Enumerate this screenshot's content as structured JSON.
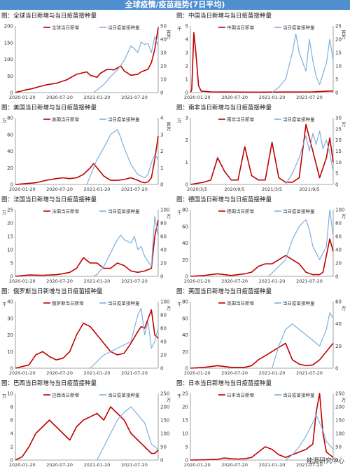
{
  "page": {
    "title": "全球疫情/疫苗趋势(7日平均)",
    "watermark": "能源研究中心"
  },
  "colors": {
    "cases": "#c00000",
    "vaccine": "#7fb0dc",
    "banner": "#4f8fd0"
  },
  "chart_data": [
    {
      "type": "line",
      "title": "图：全球当日新增与当日疫苗接种量",
      "series": [
        {
          "name": "全球当日新增",
          "axis": "left",
          "x": [
            0,
            0.3,
            1,
            1.5,
            2.5,
            3.5,
            4.5,
            6,
            7.5,
            9,
            10.5,
            11,
            12,
            12.5,
            13.5,
            14.5,
            15.5,
            16,
            17,
            18,
            18.5,
            19.5,
            20,
            20.5,
            21
          ],
          "y": [
            0,
            2,
            5,
            8,
            12,
            18,
            23,
            28,
            38,
            55,
            62,
            52,
            46,
            58,
            70,
            68,
            80,
            65,
            52,
            55,
            62,
            70,
            90,
            130,
            195
          ]
        },
        {
          "name": "当日疫苗接种量",
          "axis": "right",
          "x": [
            11.5,
            12,
            13,
            14,
            15,
            16,
            17,
            17.5,
            18,
            18.5,
            19,
            19.5,
            20,
            20.5,
            21
          ],
          "y": [
            0,
            2,
            6,
            12,
            17,
            24,
            35,
            33,
            30,
            38,
            36,
            37,
            30,
            42,
            35
          ]
        }
      ],
      "x_ticks": [
        "2020-01-20",
        "2020-07-20",
        "2021-01-20",
        "2021-07-20"
      ],
      "ylim": [
        0,
        200
      ],
      "y_ticks": [
        0,
        50,
        100,
        150,
        200
      ],
      "y2lim": [
        0,
        50
      ],
      "y2_ticks": [
        0,
        10,
        20,
        30,
        40,
        50
      ],
      "y2_unit": "百万"
    },
    {
      "type": "line",
      "title": "图：中国当日新增与当日疫苗接种量",
      "series": [
        {
          "name": "中国当日新增",
          "axis": "left",
          "x": [
            0,
            0.2,
            0.5,
            0.8,
            1.2,
            1.6,
            2,
            3,
            10,
            18,
            20,
            21
          ],
          "y": [
            0,
            0.2,
            4.5,
            3,
            0.5,
            0.1,
            0.1,
            0.05,
            0.03,
            0.05,
            0.1,
            0.12
          ]
        },
        {
          "name": "当日疫苗接种量",
          "axis": "right",
          "x": [
            12,
            13,
            14,
            15,
            15.5,
            16,
            17,
            17.5,
            18,
            18.5,
            19,
            20,
            20.5,
            21
          ],
          "y": [
            0,
            2,
            5,
            15,
            22,
            15,
            8,
            20,
            12,
            6,
            3,
            11,
            20,
            12
          ]
        }
      ],
      "x_ticks": [
        "2020-01-20",
        "2020-07-20",
        "2021-01-20",
        "2021-07-20"
      ],
      "ylim": [
        0,
        5
      ],
      "y_ticks": [
        0,
        1,
        2,
        3,
        4,
        5
      ],
      "y_unit": "千",
      "y2lim": [
        0,
        25
      ],
      "y2_ticks": [
        0,
        5,
        10,
        15,
        20,
        25
      ],
      "y2_unit": "百万"
    },
    {
      "type": "line",
      "title": "图：美国当日新增与当日疫苗接种量",
      "series": [
        {
          "name": "美国当日新增",
          "axis": "left",
          "x": [
            0,
            1.5,
            3,
            4.5,
            6,
            7,
            8,
            9,
            10,
            11,
            11.5,
            12,
            13,
            14,
            15,
            16,
            17,
            18,
            18.5,
            19,
            19.5,
            20,
            20.5,
            21
          ],
          "y": [
            0,
            1,
            2,
            5,
            7,
            8,
            7,
            8,
            12,
            20,
            25,
            20,
            10,
            5,
            5,
            6,
            8,
            5,
            3,
            2,
            3,
            8,
            30,
            58
          ]
        },
        {
          "name": "当日疫苗接种量",
          "axis": "right",
          "x": [
            10.5,
            11,
            12,
            13,
            14,
            15,
            15.5,
            16,
            17,
            18,
            19,
            19.5,
            20,
            20.5,
            21
          ],
          "y": [
            0,
            0.5,
            1.5,
            2.2,
            3,
            3.3,
            2.8,
            2.2,
            1.2,
            0.6,
            0.4,
            0.6,
            1.3,
            1.8,
            1.5
          ]
        }
      ],
      "x_ticks": [
        "2020-01-20",
        "2020-07-20",
        "2021-01-20",
        "2021-07-20"
      ],
      "ylim": [
        0,
        80
      ],
      "y_ticks": [
        0,
        20,
        40,
        60,
        80
      ],
      "y_unit": "万",
      "y2lim": [
        0,
        4
      ],
      "y2_ticks": [
        0,
        1,
        2,
        3,
        4
      ],
      "y2_unit": "百万"
    },
    {
      "type": "line",
      "title": "图：南非当日新增与当日疫苗接种量",
      "series": [
        {
          "name": "南非当日新增",
          "axis": "left",
          "x": [
            0,
            2,
            3,
            4,
            5,
            6,
            7,
            8,
            9,
            10,
            11,
            12,
            13,
            14,
            15,
            16,
            17,
            18,
            19,
            20,
            20.5,
            21
          ],
          "y": [
            0,
            0.1,
            0.2,
            1.2,
            0.6,
            0.2,
            0.2,
            1.7,
            0.4,
            0.2,
            0.2,
            1.9,
            0.3,
            0.1,
            0.1,
            0.3,
            2.7,
            1.5,
            0.3,
            1.2,
            2.1,
            1.0
          ]
        },
        {
          "name": "当日疫苗接种量",
          "axis": "right",
          "x": [
            14,
            15,
            16,
            17,
            17.5,
            18,
            18.5,
            19,
            19.5,
            20,
            20.5,
            21
          ],
          "y": [
            0,
            5,
            12,
            22,
            15,
            23,
            18,
            24,
            16,
            20,
            14,
            6
          ]
        }
      ],
      "x_ticks": [
        "2020/3/5",
        "2020/9/5",
        "2021/3/5",
        "2021/9/5"
      ],
      "ylim": [
        0,
        3
      ],
      "y_ticks": [
        0,
        1,
        2,
        3
      ],
      "y_unit": "万",
      "y2lim": [
        0,
        30
      ],
      "y2_ticks": [
        0,
        5,
        10,
        15,
        20,
        25,
        30
      ],
      "y2_unit": "万"
    },
    {
      "type": "line",
      "title": "图：法国当日新增与当日疫苗接种量",
      "series": [
        {
          "name": "法国当日新增",
          "axis": "left",
          "x": [
            0,
            2,
            4,
            6,
            7,
            8,
            9,
            10,
            11,
            12,
            13,
            14,
            15,
            16,
            17,
            18,
            19,
            20,
            20.5,
            21
          ],
          "y": [
            0,
            0.5,
            0.4,
            0.6,
            1,
            1.5,
            3,
            7,
            5,
            5,
            3,
            3,
            5,
            4,
            2,
            1.5,
            2,
            3,
            15,
            21
          ]
        },
        {
          "name": "当日疫苗接种量",
          "axis": "right",
          "x": [
            11.5,
            12,
            13,
            14,
            15,
            15.5,
            16,
            17,
            17.5,
            18,
            18.5,
            19,
            20,
            20.5,
            21
          ],
          "y": [
            0,
            3,
            15,
            35,
            55,
            62,
            55,
            50,
            60,
            40,
            45,
            30,
            15,
            90,
            60
          ]
        }
      ],
      "x_ticks": [
        "2020-01-20",
        "2020-07-20",
        "2021-01-20",
        "2021-07-20"
      ],
      "ylim": [
        0,
        25
      ],
      "y_ticks": [
        0,
        5,
        10,
        15,
        20,
        25
      ],
      "y_unit": "万",
      "y2lim": [
        0,
        100
      ],
      "y2_ticks": [
        0,
        20,
        40,
        60,
        80,
        100
      ],
      "y2_unit": "万"
    },
    {
      "type": "line",
      "title": "图：德国当日新增与当日疫苗接种量",
      "series": [
        {
          "name": "德国当日新增",
          "axis": "left",
          "x": [
            0,
            2,
            3,
            4,
            5,
            6,
            7,
            8,
            9,
            10,
            11,
            12,
            13,
            14,
            15,
            16,
            17,
            18,
            19,
            19.5,
            20,
            20.5,
            21
          ],
          "y": [
            0,
            1,
            2,
            3,
            2,
            1,
            2,
            3,
            5,
            12,
            15,
            15,
            20,
            25,
            20,
            15,
            5,
            2,
            2,
            5,
            25,
            45,
            30
          ]
        },
        {
          "name": "当日疫苗接种量",
          "axis": "right",
          "x": [
            11.5,
            12,
            13,
            14,
            15,
            16,
            17,
            17.5,
            18,
            19,
            20,
            20.5,
            21
          ],
          "y": [
            0,
            5,
            15,
            25,
            55,
            75,
            85,
            70,
            45,
            25,
            45,
            100,
            60
          ]
        }
      ],
      "x_ticks": [
        "2020-01-20",
        "2020-07-20",
        "2021-01-20",
        "2021-07-20"
      ],
      "ylim": [
        0,
        80
      ],
      "y_ticks": [
        0,
        20,
        40,
        60,
        80
      ],
      "y_unit": "千",
      "y2_ticks": [
        0,
        20,
        40,
        60,
        80,
        100
      ],
      "y2lim": [
        0,
        100
      ],
      "y2_unit": "万"
    },
    {
      "type": "line",
      "title": "图：俄罗斯当日新增与当日疫苗接种量",
      "series": [
        {
          "name": "俄罗斯当日新增",
          "axis": "left",
          "x": [
            0,
            2,
            3,
            4,
            5,
            6,
            7,
            8,
            9,
            10,
            11,
            12,
            13,
            14,
            15,
            16,
            17,
            18,
            18.5,
            19,
            20,
            20.5,
            21
          ],
          "y": [
            0,
            2,
            8,
            10,
            7,
            5,
            6,
            10,
            20,
            27,
            25,
            20,
            15,
            10,
            8,
            9,
            15,
            22,
            25,
            24,
            35,
            20,
            18
          ]
        },
        {
          "name": "当日疫苗接种量",
          "axis": "right",
          "x": [
            11,
            12,
            13,
            14,
            15,
            16,
            17,
            17.5,
            18,
            18.5,
            19,
            19.5,
            20,
            20.5,
            21
          ],
          "y": [
            0,
            10,
            20,
            25,
            30,
            35,
            40,
            60,
            80,
            90,
            50,
            70,
            30,
            40,
            60
          ]
        }
      ],
      "x_ticks": [
        "2020-01-20",
        "2020-07-20",
        "2021-01-20",
        "2021-07-20"
      ],
      "ylim": [
        0,
        40
      ],
      "y_ticks": [
        0,
        10,
        20,
        30,
        40
      ],
      "y_unit": "千",
      "y2lim": [
        0,
        100
      ],
      "y2_ticks": [
        0,
        20,
        40,
        60,
        80,
        100
      ],
      "y2_unit": "万"
    },
    {
      "type": "line",
      "title": "图：英国当日新增与当日疫苗接种量",
      "series": [
        {
          "name": "英国当日新增",
          "axis": "left",
          "x": [
            0,
            2,
            4,
            6,
            8,
            9,
            10,
            11,
            12,
            13,
            14,
            15,
            16,
            17,
            18,
            19,
            20,
            20.5,
            21
          ],
          "y": [
            0,
            1,
            3,
            1,
            1,
            3,
            10,
            15,
            20,
            25,
            30,
            10,
            5,
            3,
            4,
            10,
            20,
            25,
            30
          ]
        },
        {
          "name": "当日疫苗接种量",
          "axis": "right",
          "x": [
            12,
            13,
            14,
            15,
            16,
            17,
            18,
            19,
            20,
            20.5,
            21
          ],
          "y": [
            0,
            20,
            35,
            40,
            35,
            30,
            25,
            20,
            35,
            50,
            45
          ]
        }
      ],
      "x_ticks": [
        "2020-01-20",
        "2020-07-20",
        "2021-01-20",
        "2021-07-20"
      ],
      "ylim": [
        0,
        80
      ],
      "y_ticks": [
        0,
        20,
        40,
        60,
        80
      ],
      "y_unit": "千",
      "y2lim": [
        0,
        60
      ],
      "y2_ticks": [
        0,
        20,
        40,
        60
      ],
      "y2_unit": "万"
    },
    {
      "type": "line",
      "title": "图：巴西当日新增与当日疫苗接种量",
      "series": [
        {
          "name": "巴西当日新增",
          "axis": "left",
          "x": [
            0,
            1,
            2,
            3,
            4,
            5,
            6,
            7,
            8,
            9,
            10,
            11,
            12,
            13,
            14,
            15,
            16,
            17,
            18,
            19,
            20,
            20.5,
            21
          ],
          "y": [
            0,
            0.5,
            2,
            4,
            5,
            6,
            5,
            4,
            3,
            5,
            6,
            6.5,
            7,
            6,
            8,
            7,
            6,
            4,
            3,
            2,
            1,
            1,
            1.5
          ]
        },
        {
          "name": "当日疫苗接种量",
          "axis": "right",
          "x": [
            12,
            13,
            14,
            15,
            16,
            17,
            18,
            19,
            20,
            21
          ],
          "y": [
            0,
            50,
            100,
            150,
            180,
            200,
            170,
            140,
            60,
            40
          ]
        }
      ],
      "x_ticks": [
        "2020-01-20",
        "2020-07-20",
        "2021-01-20",
        "2021-07-20"
      ],
      "ylim": [
        0,
        10
      ],
      "y_ticks": [
        0,
        2,
        4,
        6,
        8,
        10
      ],
      "y_unit": "万",
      "y2lim": [
        0,
        250
      ],
      "y2_ticks": [
        0,
        50,
        100,
        150,
        200,
        250
      ],
      "y2_unit": "万"
    },
    {
      "type": "line",
      "title": "图：日本当日新增与当日疫苗接种量",
      "series": [
        {
          "name": "日本当日新增",
          "axis": "left",
          "x": [
            0,
            2,
            4,
            5,
            6,
            7,
            8,
            9,
            10,
            11,
            12,
            13,
            14,
            15,
            16,
            17,
            18,
            18.5,
            19,
            19.5,
            20,
            21
          ],
          "y": [
            0,
            0.1,
            0.3,
            0.8,
            0.5,
            0.4,
            0.5,
            1,
            3,
            5,
            4,
            2,
            1,
            2,
            3,
            4,
            6,
            18,
            25,
            10,
            3,
            1
          ]
        },
        {
          "name": "当日疫苗接种量",
          "axis": "right",
          "x": [
            14,
            15,
            16,
            17,
            18,
            18.5,
            19,
            19.5,
            20,
            21
          ],
          "y": [
            0,
            20,
            50,
            90,
            140,
            170,
            140,
            110,
            70,
            40
          ]
        }
      ],
      "x_ticks": [
        "2020-01-20",
        "2020-07-20",
        "2021-01-20",
        "2021-07-20"
      ],
      "ylim": [
        0,
        25
      ],
      "y_ticks": [
        0,
        5,
        10,
        15,
        20,
        25
      ],
      "y_unit": "千",
      "y2lim": [
        0,
        250
      ],
      "y2_ticks": [
        0,
        50,
        100,
        150,
        200,
        250
      ],
      "y2_unit": "万"
    }
  ]
}
